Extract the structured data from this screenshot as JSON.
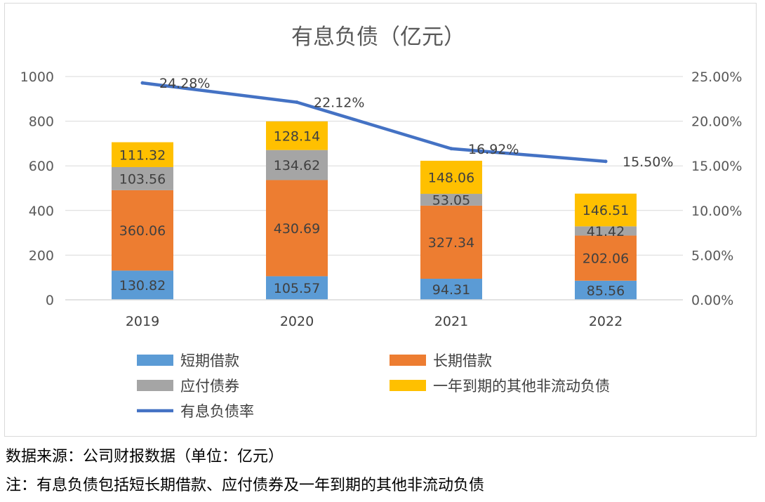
{
  "chart_data": {
    "type": "bar",
    "stacked": true,
    "title": "有息负债（亿元）",
    "categories": [
      "2019",
      "2020",
      "2021",
      "2022"
    ],
    "series": [
      {
        "name": "短期借款",
        "color": "#5b9bd5",
        "values": [
          130.82,
          105.57,
          94.31,
          85.56
        ],
        "labels": [
          "130.82",
          "105.57",
          "94.31",
          "85.56"
        ]
      },
      {
        "name": "长期借款",
        "color": "#ed7d31",
        "values": [
          360.06,
          430.69,
          327.34,
          202.06
        ],
        "labels": [
          "360.06",
          "430.69",
          "327.34",
          "202.06"
        ]
      },
      {
        "name": "应付债券",
        "color": "#a5a5a5",
        "values": [
          103.56,
          134.62,
          53.05,
          41.42
        ],
        "labels": [
          "103.56",
          "134.62",
          "53.05",
          "41.42"
        ]
      },
      {
        "name": "一年到期的其他非流动负债",
        "color": "#ffc000",
        "values": [
          111.32,
          128.14,
          148.06,
          146.51
        ],
        "labels": [
          "111.32",
          "128.14",
          "148.06",
          "146.51"
        ]
      }
    ],
    "line_series": {
      "name": "有息负债率",
      "color": "#4472c4",
      "axis": "right",
      "values": [
        24.28,
        22.12,
        16.92,
        15.5
      ],
      "labels": [
        "24.28%",
        "22.12%",
        "16.92%",
        "15.50%"
      ]
    },
    "left_axis": {
      "ylim": [
        0,
        1000
      ],
      "ticks": [
        0,
        200,
        400,
        600,
        800,
        1000
      ],
      "tick_labels": [
        "0",
        "200",
        "400",
        "600",
        "800",
        "1000"
      ]
    },
    "right_axis": {
      "ylim": [
        0,
        25
      ],
      "ticks": [
        0,
        5,
        10,
        15,
        20,
        25
      ],
      "tick_labels": [
        "0.00%",
        "5.00%",
        "10.00%",
        "15.00%",
        "20.00%",
        "25.00%"
      ]
    },
    "grid": true,
    "legend_position": "bottom"
  },
  "notes": {
    "source": "数据来源：公司财报数据（单位：亿元）",
    "footnote": "注：有息负债包括短长期借款、应付债券及一年到期的其他非流动负债"
  }
}
